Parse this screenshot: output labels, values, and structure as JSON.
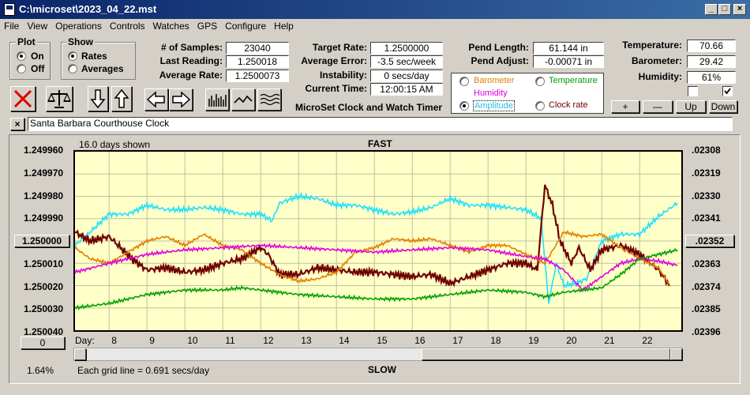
{
  "window": {
    "title": "C:\\microset\\2023_04_22.mst"
  },
  "menu": [
    "File",
    "View",
    "Operations",
    "Controls",
    "Watches",
    "GPS",
    "Configure",
    "Help"
  ],
  "plot_group": {
    "title": "Plot",
    "on": "On",
    "off": "Off",
    "selected": "On"
  },
  "show_group": {
    "title": "Show",
    "rates": "Rates",
    "averages": "Averages",
    "selected": "Rates"
  },
  "stats": {
    "samples_label": "# of Samples:",
    "samples": "23040",
    "last_label": "Last Reading:",
    "last": "1.250018",
    "avg_label": "Average Rate:",
    "avg": "1.2500073",
    "target_label": "Target Rate:",
    "target": "1.2500000",
    "avgerr_label": "Average Error:",
    "avgerr": "-3.5 sec/week",
    "instab_label": "Instability:",
    "instab": "0 secs/day",
    "curtime_label": "Current Time:",
    "curtime": "12:00:15 AM",
    "pendlen_label": "Pend Length:",
    "pendlen": "61.144 in",
    "pendadj_label": "Pend Adjust:",
    "pendadj": "-0.00071 in",
    "temp_label": "Temperature:",
    "temp": "70.66",
    "baro_label": "Barometer:",
    "baro": "29.42",
    "hum_label": "Humidity:",
    "hum": "61%"
  },
  "app_subtitle": "MicroSet Clock and Watch Timer",
  "series_selector": {
    "barometer": "Barometer",
    "temperature": "Temperature",
    "humidity": "Humidity",
    "amplitude": "Amplitude",
    "clock_rate": "Clock rate",
    "selected": "Amplitude"
  },
  "adjust_buttons": {
    "plus": "+",
    "minus": "—",
    "up": "Up",
    "down": "Down"
  },
  "clock_name": {
    "close": "×",
    "value": "Santa Barbara Courthouse Clock"
  },
  "chart_labels": {
    "days_shown": "16.0 days shown",
    "fast": "FAST",
    "slow": "SLOW",
    "day_prefix": "Day:",
    "grid_note": "Each grid line = 0.691 secs/day",
    "zero_button": "0",
    "mid_left_button": "1.250000",
    "mid_right_button": ".02352",
    "percent": "1.64%"
  },
  "colors": {
    "barometer": "#e08000",
    "temperature": "#00a000",
    "humidity": "#e000e0",
    "amplitude": "#20e0ff",
    "clock_rate": "#700000"
  },
  "chart_data": {
    "type": "line",
    "x_label": "Day:",
    "x_ticks": [
      8,
      9,
      10,
      11,
      12,
      13,
      14,
      15,
      16,
      17,
      18,
      19,
      20,
      21,
      22
    ],
    "xlim": [
      7.1,
      23.1
    ],
    "left_axis": {
      "ticks": [
        "1.249960",
        "1.249970",
        "1.249980",
        "1.249990",
        "1.250000",
        "1.250010",
        "1.250020",
        "1.250030",
        "1.250040"
      ],
      "ylim": [
        1.25004,
        1.24996
      ],
      "mid_label": "1.250000"
    },
    "right_axis": {
      "ticks": [
        ".02308",
        ".02319",
        ".02330",
        ".02341",
        ".02352",
        ".02363",
        ".02374",
        ".02385",
        ".02396"
      ],
      "mid_label": ".02352"
    },
    "grid": true,
    "series": [
      {
        "name": "Amplitude",
        "color": "#20e0ff",
        "x": [
          7.1,
          7.5,
          8.0,
          8.5,
          9.0,
          9.5,
          10.0,
          10.5,
          11.0,
          11.5,
          12.0,
          12.3,
          12.5,
          13.0,
          13.5,
          14.0,
          14.5,
          15.0,
          15.5,
          16.0,
          16.5,
          17.0,
          17.5,
          18.0,
          18.5,
          19.0,
          19.4,
          19.6,
          19.8,
          20.0,
          20.3,
          20.6,
          21.0,
          21.5,
          22.0,
          22.5,
          23.0
        ],
        "y": [
          1.250002,
          1.249996,
          1.249988,
          1.249988,
          1.249984,
          1.249986,
          1.249986,
          1.249985,
          1.249986,
          1.249988,
          1.249988,
          1.249991,
          1.249983,
          1.24998,
          1.249981,
          1.249984,
          1.249984,
          1.249986,
          1.249988,
          1.249987,
          1.249985,
          1.249981,
          1.249984,
          1.249984,
          1.249985,
          1.249986,
          1.24999,
          1.250028,
          1.25001,
          1.25002,
          1.250019,
          1.250017,
          1.25,
          1.249997,
          1.249997,
          1.249989,
          1.249983
        ]
      },
      {
        "name": "Clock rate",
        "color": "#700000",
        "x": [
          7.1,
          7.5,
          8.0,
          8.3,
          8.6,
          9.0,
          9.5,
          10.0,
          10.5,
          11.0,
          11.5,
          12.0,
          12.2,
          12.5,
          13.0,
          13.5,
          14.0,
          14.5,
          15.0,
          15.5,
          16.0,
          16.5,
          17.0,
          17.5,
          18.0,
          18.5,
          19.0,
          19.3,
          19.5,
          19.7,
          19.9,
          20.2,
          20.4,
          20.7,
          21.0,
          21.5,
          22.0,
          22.5,
          22.8
        ],
        "y": [
          1.249996,
          1.25,
          1.249998,
          1.250003,
          1.250008,
          1.250013,
          1.250012,
          1.250014,
          1.250013,
          1.25001,
          1.250008,
          1.250003,
          1.250006,
          1.250015,
          1.250015,
          1.250012,
          1.250013,
          1.250014,
          1.250014,
          1.250015,
          1.250016,
          1.250015,
          1.250019,
          1.250016,
          1.250013,
          1.25001,
          1.25001,
          1.250013,
          1.249975,
          1.249984,
          1.25,
          1.25001,
          1.250003,
          1.250013,
          1.250004,
          1.250002,
          1.250006,
          1.250013,
          1.25002
        ]
      },
      {
        "name": "Barometer",
        "color": "#e08000",
        "x": [
          7.1,
          7.5,
          8.0,
          8.5,
          9.0,
          9.5,
          10.0,
          10.5,
          11.0,
          11.5,
          12.0,
          12.5,
          13.0,
          13.5,
          14.0,
          14.5,
          15.0,
          15.5,
          16.0,
          16.5,
          17.0,
          17.5,
          18.0,
          18.5,
          19.0,
          19.5,
          20.0,
          20.5,
          21.0,
          21.5,
          22.0,
          22.5,
          22.8
        ],
        "y": [
          1.250003,
          1.250008,
          1.25001,
          1.250005,
          1.25,
          1.249998,
          1.250002,
          1.249997,
          1.250002,
          1.250004,
          1.25001,
          1.250015,
          1.250018,
          1.250017,
          1.250014,
          1.250005,
          1.250003,
          1.249999,
          1.25,
          1.249999,
          1.250002,
          1.250005,
          1.250002,
          1.250002,
          1.250006,
          1.25001,
          1.249996,
          1.249998,
          1.249997,
          1.250003,
          1.250008,
          1.250012,
          1.25002
        ]
      },
      {
        "name": "Humidity",
        "color": "#e000e0",
        "x": [
          7.1,
          8.0,
          9.0,
          10.0,
          11.0,
          12.0,
          13.0,
          14.0,
          15.0,
          16.0,
          17.0,
          18.0,
          19.0,
          19.5,
          20.0,
          20.5,
          21.0,
          21.5,
          22.0,
          22.5,
          23.0
        ],
        "y": [
          1.250014,
          1.25001,
          1.250006,
          1.250004,
          1.250003,
          1.250002,
          1.250003,
          1.250004,
          1.250005,
          1.250004,
          1.250003,
          1.250004,
          1.250007,
          1.250008,
          1.250013,
          1.250022,
          1.250016,
          1.25001,
          1.250008,
          1.250009,
          1.250011
        ]
      },
      {
        "name": "Temperature",
        "color": "#00a000",
        "x": [
          7.1,
          8.0,
          9.0,
          10.0,
          11.0,
          11.5,
          12.0,
          13.0,
          14.0,
          15.0,
          16.0,
          17.0,
          18.0,
          19.0,
          19.5,
          20.0,
          20.5,
          21.0,
          21.5,
          22.0,
          22.5,
          23.0
        ],
        "y": [
          1.25003,
          1.250028,
          1.250024,
          1.250022,
          1.250022,
          1.250021,
          1.250022,
          1.250024,
          1.250025,
          1.250026,
          1.250026,
          1.250024,
          1.250022,
          1.250023,
          1.250025,
          1.250023,
          1.250022,
          1.250021,
          1.250015,
          1.250008,
          1.250006,
          1.250004
        ]
      }
    ]
  }
}
